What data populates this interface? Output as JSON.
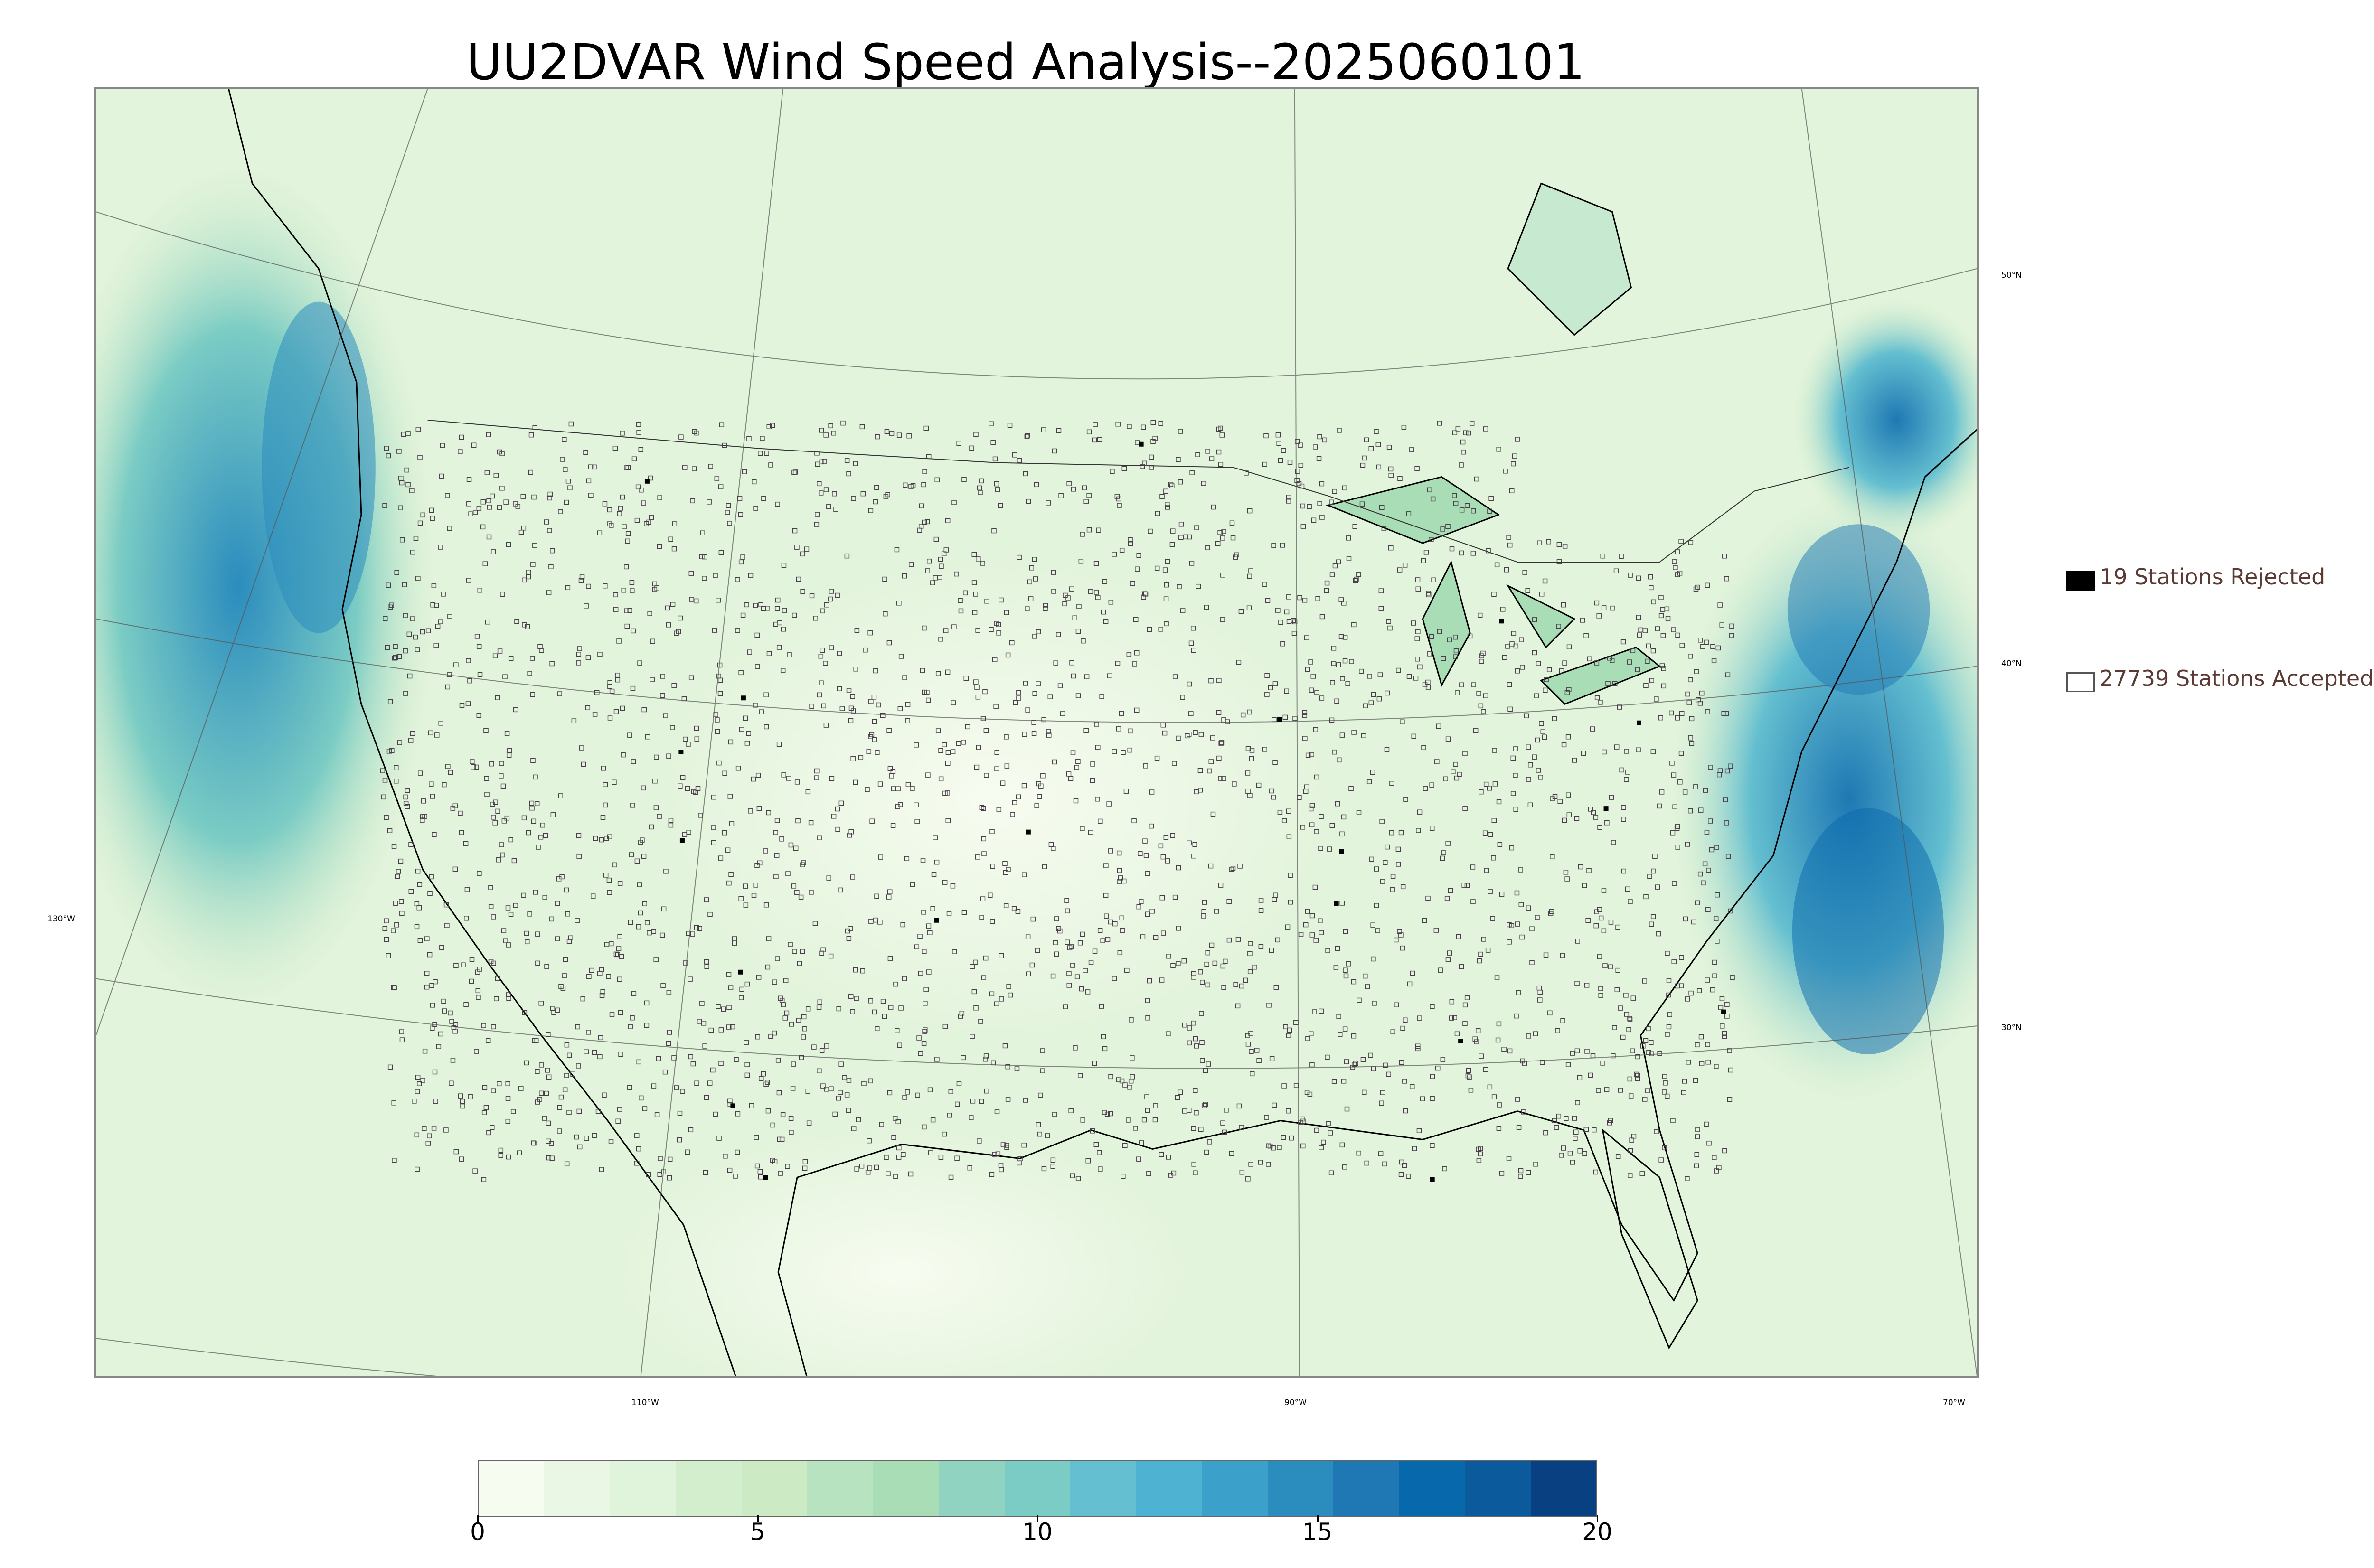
{
  "title": "UU2DVAR Wind Speed Analysis--2025060101",
  "map": {
    "projection": "lambert-conformal",
    "field": "wind speed",
    "lon_labels": [
      "130°W",
      "110°W",
      "90°W",
      "70°W"
    ],
    "lat_labels": [
      "50°N",
      "40°N",
      "30°N"
    ],
    "colors": {
      "low": "#f7fcf0",
      "mid": "#7bccc4",
      "high": "#084081",
      "land_outline": "#000000",
      "grid": "#555555"
    }
  },
  "legend": {
    "rejected": {
      "label": "19 Stations Rejected",
      "count": 19,
      "marker": "filled-black-square"
    },
    "accepted": {
      "label": "27739 Stations Accepted",
      "count": 27739,
      "marker": "hollow-square"
    }
  },
  "colorbar": {
    "range": [
      0,
      20
    ],
    "ticks": [
      "0",
      "5",
      "10",
      "15",
      "20"
    ],
    "tick_values": [
      0,
      5,
      10,
      15,
      20
    ],
    "colors": [
      "#f7fcf0",
      "#eaf7e4",
      "#e0f3db",
      "#d3eecd",
      "#ccebc5",
      "#b8e3c0",
      "#a8ddb5",
      "#8fd3c0",
      "#7bccc4",
      "#64bfd0",
      "#4eb3d3",
      "#3ba1ca",
      "#2b8cbe",
      "#1f78b3",
      "#0868ac",
      "#0a5a9c",
      "#084081"
    ]
  }
}
